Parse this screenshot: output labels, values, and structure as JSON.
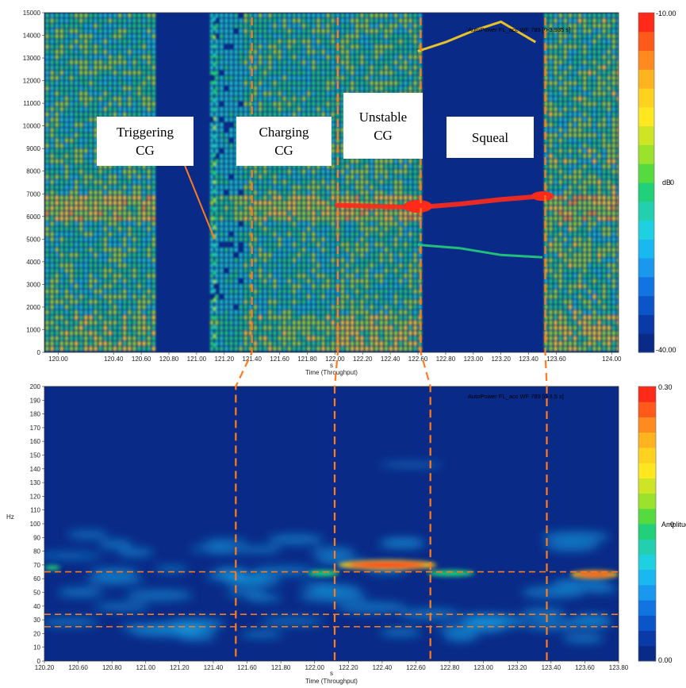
{
  "chart_data": [
    {
      "type": "heatmap",
      "panel": "top-spectrogram",
      "title": "AutoPower FL_acc WF 789 [0-3.935 s]",
      "xlabel": "Time (Throughput)",
      "xunit": "s",
      "ylabel": "",
      "xlim": [
        119.9,
        124.05
      ],
      "ylim": [
        0,
        15000
      ],
      "xticks": [
        "120.00",
        "120.40",
        "120.60",
        "120.80",
        "121.00",
        "121.20",
        "121.40",
        "121.60",
        "121.80",
        "122.00",
        "122.20",
        "122.40",
        "122.60",
        "122.80",
        "123.00",
        "123.20",
        "123.40",
        "123.60",
        "124.00"
      ],
      "xtick_values": [
        120.0,
        120.4,
        120.6,
        120.8,
        121.0,
        121.2,
        121.4,
        121.6,
        121.8,
        122.0,
        122.2,
        122.4,
        122.6,
        122.8,
        123.0,
        123.2,
        123.4,
        123.6,
        124.0
      ],
      "yticks": [
        0,
        1000,
        2000,
        3000,
        4000,
        5000,
        6000,
        7000,
        8000,
        9000,
        10000,
        11000,
        12000,
        13000,
        14000,
        15000
      ],
      "colorbar": {
        "min": "-40.00",
        "max": "-10.00",
        "mid": "0",
        "unit": "dB"
      },
      "grid": false,
      "phases": [
        {
          "label": "Triggering\nCG",
          "start": 119.9,
          "end": 121.4
        },
        {
          "label": "Charging\nCG",
          "start": 121.4,
          "end": 122.05
        },
        {
          "label": "Unstable\nCG",
          "start": 122.05,
          "end": 122.62
        },
        {
          "label": "Squeal",
          "start": 122.62,
          "end": 123.52
        }
      ],
      "ridges_hz": [
        6500,
        13600,
        4700
      ]
    },
    {
      "type": "heatmap",
      "panel": "bottom-spectrogram",
      "title": "AutoPower FL_acc WF 789 [0-3.5 s]",
      "xlabel": "Time (Throughput)",
      "xunit": "s",
      "ylabel": "Hz",
      "xlim": [
        120.2,
        123.8
      ],
      "ylim": [
        0,
        200
      ],
      "xticks": [
        "120.20",
        "120.60",
        "120.80",
        "121.00",
        "121.20",
        "121.40",
        "121.60",
        "121.80",
        "122.00",
        "122.20",
        "122.40",
        "122.60",
        "122.80",
        "123.00",
        "123.20",
        "123.40",
        "123.60",
        "123.80"
      ],
      "yticks": [
        0,
        10,
        20,
        30,
        40,
        50,
        60,
        70,
        80,
        90,
        100,
        110,
        120,
        130,
        140,
        150,
        160,
        170,
        180,
        190,
        200
      ],
      "colorbar": {
        "min": "0.00",
        "max": "0.30",
        "mid": "0",
        "unit": "Amplitude"
      },
      "grid": false,
      "reference_lines_hz": [
        65,
        34,
        25
      ],
      "marker_times": [
        121.4,
        122.02,
        122.62,
        123.35
      ]
    }
  ],
  "colors": {
    "background": "#0a2a87",
    "marker": "#ff7b1c",
    "hot": "#ff2a1a",
    "warm": "#ffd21f",
    "mid": "#22d07a",
    "cool": "#1aa5e8"
  }
}
